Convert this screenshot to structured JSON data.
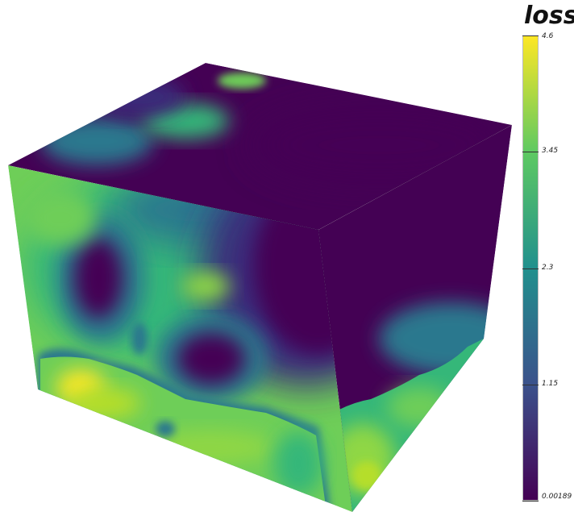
{
  "chart_data": {
    "type": "heatmap",
    "plot": "3d-volume",
    "colormap": "viridis",
    "colorbar": {
      "title": "loss",
      "min": 0.00189,
      "max": 4.6,
      "ticks": [
        {
          "value": 4.6,
          "label": "4.6"
        },
        {
          "value": 3.45,
          "label": "3.45"
        },
        {
          "value": 2.3,
          "label": "2.3"
        },
        {
          "value": 1.15,
          "label": "1.15"
        },
        {
          "value": 0.00189,
          "label": "0.00189"
        }
      ]
    }
  }
}
